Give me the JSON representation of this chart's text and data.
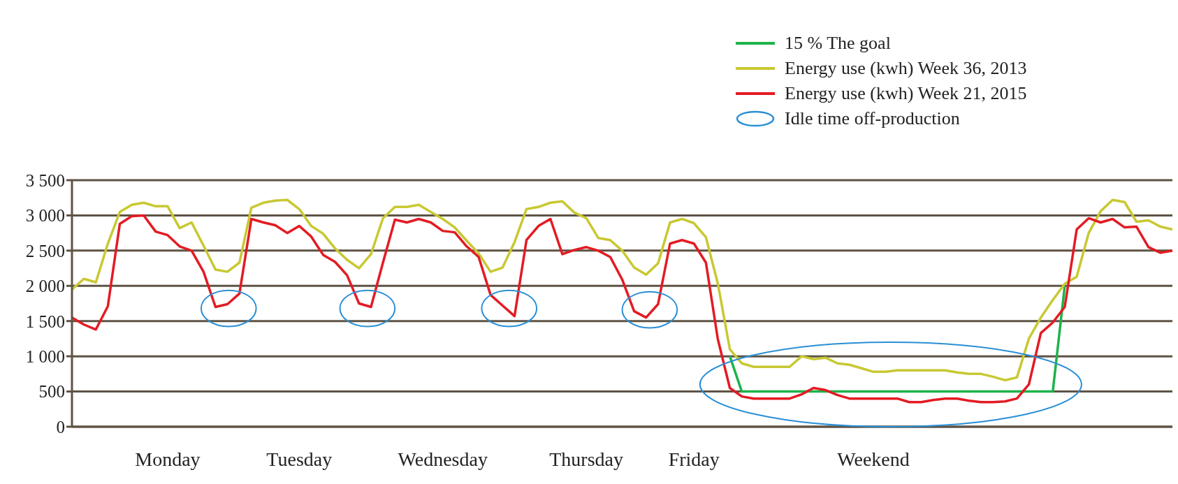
{
  "chart_data": {
    "type": "line",
    "ylim": [
      0,
      3500
    ],
    "categories": [
      null,
      null,
      null,
      null,
      null,
      null,
      null,
      null,
      "Monday",
      null,
      null,
      null,
      null,
      null,
      null,
      null,
      null,
      null,
      null,
      "Tuesday",
      null,
      null,
      null,
      null,
      null,
      null,
      null,
      null,
      null,
      null,
      null,
      "Wednesday",
      null,
      null,
      null,
      null,
      null,
      null,
      null,
      null,
      null,
      null,
      null,
      "Thursday",
      null,
      null,
      null,
      null,
      null,
      null,
      null,
      null,
      "Friday",
      null,
      null,
      null,
      null,
      null,
      null,
      null,
      null,
      null,
      null,
      null,
      null,
      null,
      null,
      "Weekend",
      null,
      null,
      null,
      null,
      null,
      null,
      null,
      null,
      null,
      null,
      null,
      null,
      null,
      null,
      null,
      null,
      null,
      null,
      null,
      null,
      null,
      null,
      null,
      null,
      null
    ],
    "yticks": [
      0,
      500,
      {
        "value": 1000,
        "label": "1 000"
      },
      {
        "value": 1500,
        "label": "1 500"
      },
      {
        "value": 2000,
        "label": "2 000"
      },
      {
        "value": 2500,
        "label": "2 500"
      },
      {
        "value": 3000,
        "label": "3 000"
      },
      {
        "value": 3500,
        "label": "3 500"
      }
    ],
    "grid": "y",
    "legend": "top right",
    "marker": "none",
    "line_style": "solid",
    "annotations": [
      "Idle time off-production"
    ],
    "series": [
      {
        "name": "15 % The goal",
        "color": "#1db34a",
        "values": [
          null,
          null,
          null,
          null,
          null,
          null,
          null,
          null,
          null,
          null,
          null,
          null,
          null,
          null,
          null,
          null,
          null,
          null,
          null,
          null,
          null,
          null,
          null,
          null,
          null,
          null,
          null,
          null,
          null,
          null,
          null,
          null,
          null,
          null,
          null,
          null,
          null,
          null,
          null,
          null,
          null,
          null,
          null,
          null,
          null,
          null,
          null,
          null,
          null,
          null,
          null,
          null,
          null,
          null,
          null,
          1000,
          500,
          500,
          500,
          500,
          500,
          500,
          500,
          500,
          500,
          500,
          500,
          500,
          500,
          500,
          500,
          500,
          500,
          500,
          500,
          500,
          500,
          500,
          500,
          500,
          500,
          500,
          500,
          2000,
          null,
          null,
          null,
          null,
          null,
          null,
          null,
          null,
          null
        ]
      },
      {
        "name": "Energy use (kwh) Week 36, 2013",
        "color": "#c8c832",
        "values": [
          1950,
          2100,
          2050,
          2600,
          3050,
          3150,
          3180,
          3130,
          3130,
          2820,
          2900,
          2570,
          2230,
          2200,
          2330,
          3110,
          3180,
          3210,
          3220,
          3090,
          2850,
          2740,
          2530,
          2370,
          2250,
          2450,
          2960,
          3120,
          3120,
          3150,
          3050,
          2950,
          2830,
          2640,
          2460,
          2200,
          2260,
          2620,
          3090,
          3120,
          3180,
          3200,
          3040,
          2960,
          2680,
          2650,
          2500,
          2260,
          2160,
          2320,
          2900,
          2950,
          2890,
          2690,
          2030,
          1100,
          900,
          850,
          850,
          850,
          850,
          1000,
          960,
          980,
          900,
          880,
          830,
          780,
          780,
          800,
          800,
          800,
          800,
          800,
          770,
          750,
          750,
          710,
          660,
          700,
          1250,
          1550,
          1800,
          2030,
          2130,
          2750,
          3060,
          3220,
          3190,
          2910,
          2930,
          2840,
          2800
        ]
      },
      {
        "name": "Energy use (kwh) Week 21, 2015",
        "color": "#e31b23",
        "values": [
          1550,
          1450,
          1380,
          1710,
          2880,
          2990,
          3000,
          2770,
          2720,
          2560,
          2500,
          2200,
          1700,
          1740,
          1890,
          2950,
          2900,
          2860,
          2750,
          2850,
          2700,
          2440,
          2340,
          2150,
          1750,
          1700,
          2330,
          2940,
          2900,
          2950,
          2900,
          2780,
          2760,
          2560,
          2410,
          1870,
          1720,
          1570,
          2650,
          2850,
          2950,
          2450,
          2510,
          2550,
          2500,
          2410,
          2090,
          1640,
          1550,
          1740,
          2600,
          2650,
          2600,
          2330,
          1240,
          550,
          430,
          400,
          400,
          400,
          400,
          460,
          550,
          520,
          450,
          400,
          400,
          400,
          400,
          400,
          350,
          350,
          380,
          400,
          400,
          370,
          350,
          350,
          360,
          400,
          600,
          1330,
          1480,
          1700,
          2800,
          2960,
          2900,
          2950,
          2830,
          2840,
          2550,
          2470,
          2500
        ]
      }
    ]
  }
}
